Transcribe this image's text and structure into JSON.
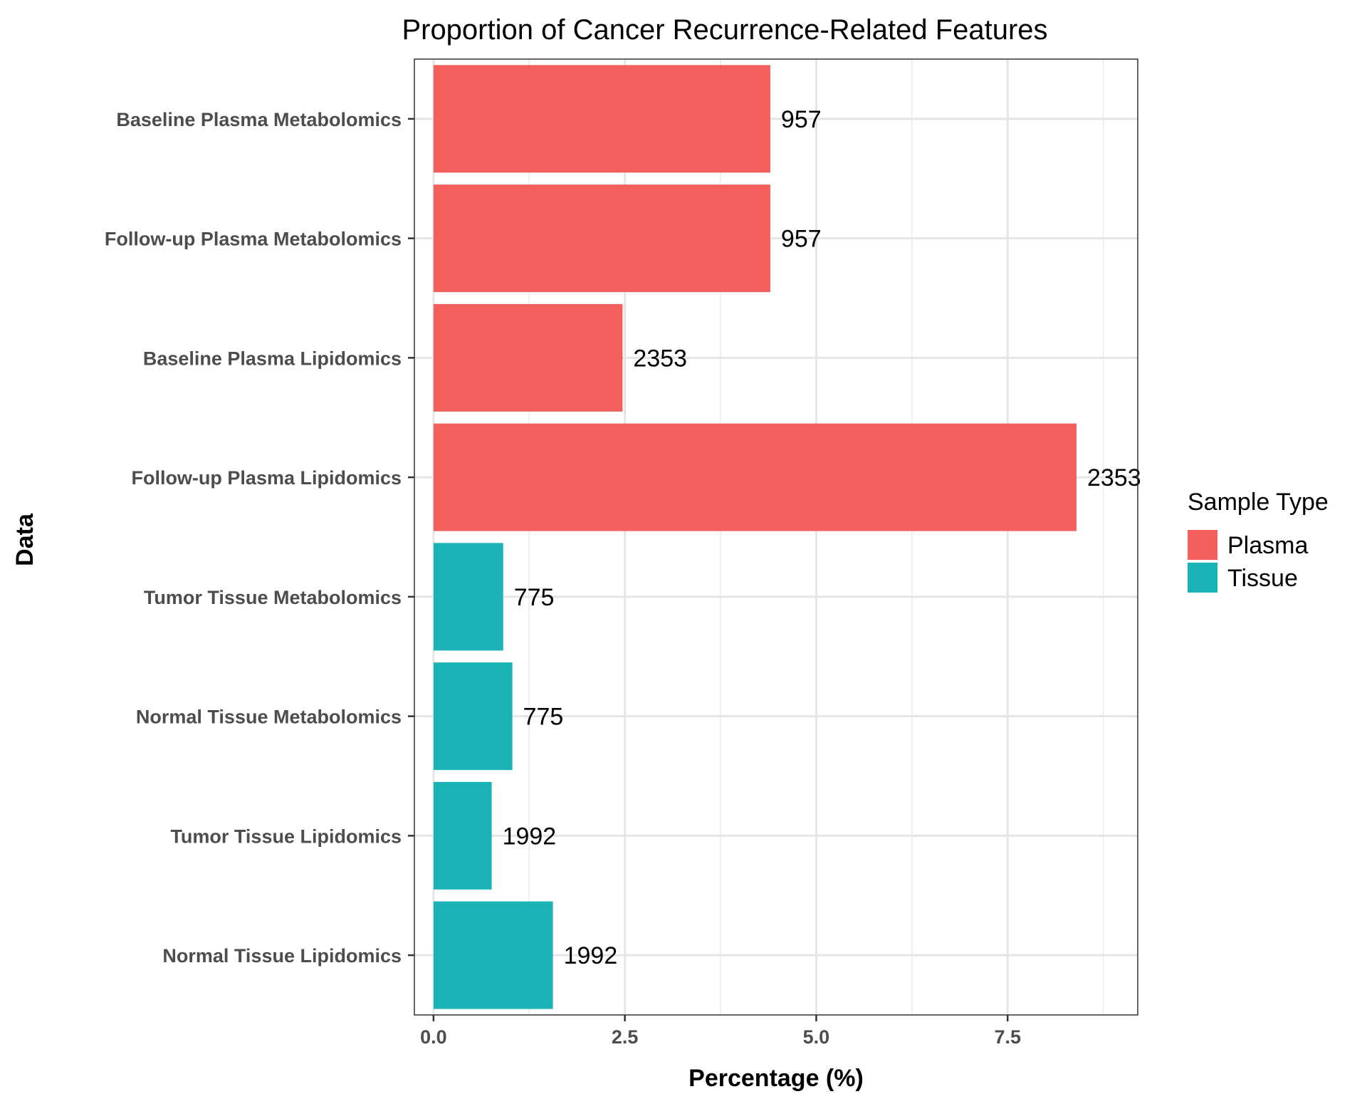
{
  "chart_data": {
    "type": "bar",
    "orientation": "horizontal",
    "title": "Proportion of Cancer Recurrence-Related Features",
    "xlabel": "Percentage (%)",
    "ylabel": "Data",
    "xlim": [
      -0.25,
      9.2
    ],
    "xticks": [
      0,
      2.5,
      5,
      7.5
    ],
    "xtick_labels": [
      "0.0",
      "2.5",
      "5.0",
      "7.5"
    ],
    "grid": true,
    "legend": {
      "title": "Sample Type",
      "position": "right",
      "entries": [
        {
          "name": "Plasma",
          "color": "#F25F5C"
        },
        {
          "name": "Tissue",
          "color": "#1AB3B5"
        }
      ]
    },
    "categories": [
      "Baseline Plasma Metabolomics",
      "Follow-up Plasma Metabolomics",
      "Baseline Plasma Lipidomics",
      "Follow-up Plasma Lipidomics",
      "Tumor Tissue Metabolomics",
      "Normal Tissue Metabolomics",
      "Tumor Tissue Lipidomics",
      "Normal Tissue Lipidomics"
    ],
    "values": [
      4.4,
      4.4,
      2.47,
      8.4,
      0.91,
      1.03,
      0.76,
      1.56
    ],
    "groups": [
      "Plasma",
      "Plasma",
      "Plasma",
      "Plasma",
      "Tissue",
      "Tissue",
      "Tissue",
      "Tissue"
    ],
    "data_labels": [
      "957",
      "957",
      "2353",
      "2353",
      "775",
      "775",
      "1992",
      "1992"
    ]
  }
}
